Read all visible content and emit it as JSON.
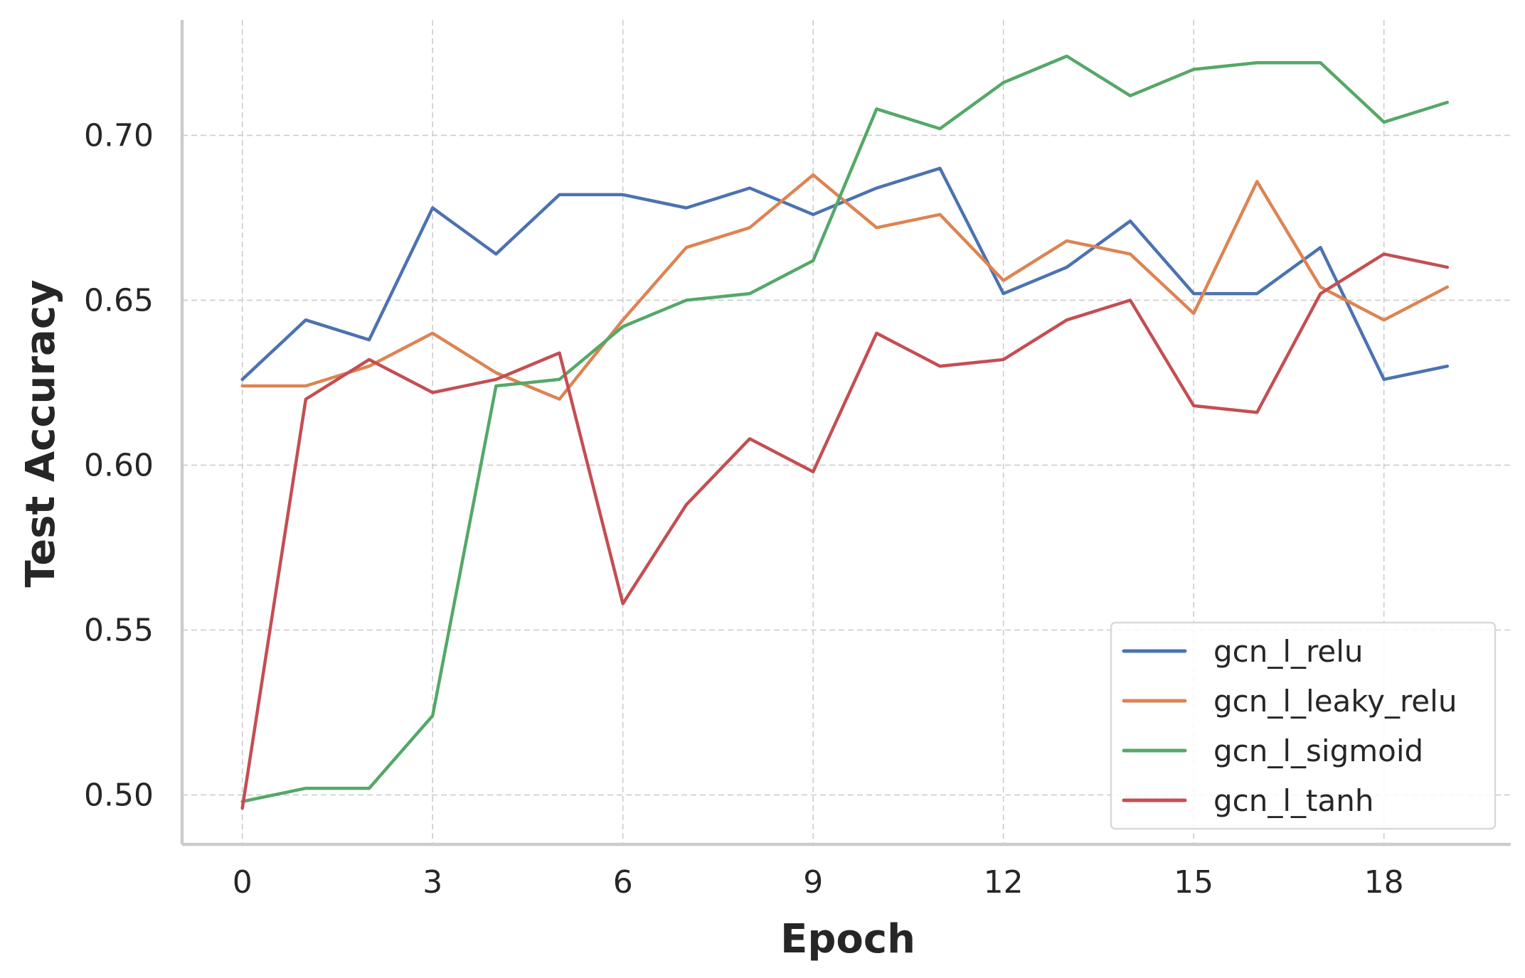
{
  "chart_data": {
    "type": "line",
    "title": "",
    "xlabel": "Epoch",
    "ylabel": "Test Accuracy",
    "xlim": [
      -0.95,
      20
    ],
    "ylim": [
      0.485,
      0.735
    ],
    "x_ticks": [
      0,
      3,
      6,
      9,
      12,
      15,
      18
    ],
    "y_ticks": [
      0.5,
      0.55,
      0.6,
      0.65,
      0.7
    ],
    "y_tick_labels": [
      "0.50",
      "0.55",
      "0.60",
      "0.65",
      "0.70"
    ],
    "grid": true,
    "legend_position": "lower-right",
    "x": [
      0,
      1,
      2,
      3,
      4,
      5,
      6,
      7,
      8,
      9,
      10,
      11,
      12,
      13,
      14,
      15,
      16,
      17,
      18,
      19
    ],
    "series": [
      {
        "name": "gcn_l_relu",
        "color": "#4c72b0",
        "values": [
          0.626,
          0.644,
          0.638,
          0.678,
          0.664,
          0.682,
          0.682,
          0.678,
          0.684,
          0.676,
          0.684,
          0.69,
          0.652,
          0.66,
          0.674,
          0.652,
          0.652,
          0.666,
          0.626,
          0.63
        ]
      },
      {
        "name": "gcn_l_leaky_relu",
        "color": "#dd8452",
        "values": [
          0.624,
          0.624,
          0.63,
          0.64,
          0.628,
          0.62,
          0.644,
          0.666,
          0.672,
          0.688,
          0.672,
          0.676,
          0.656,
          0.668,
          0.664,
          0.646,
          0.686,
          0.654,
          0.644,
          0.654
        ]
      },
      {
        "name": "gcn_l_sigmoid",
        "color": "#55a868",
        "values": [
          0.498,
          0.502,
          0.502,
          0.524,
          0.624,
          0.626,
          0.642,
          0.65,
          0.652,
          0.662,
          0.708,
          0.702,
          0.716,
          0.724,
          0.712,
          0.72,
          0.722,
          0.722,
          0.704,
          0.71
        ]
      },
      {
        "name": "gcn_l_tanh",
        "color": "#c44e52",
        "values": [
          0.496,
          0.62,
          0.632,
          0.622,
          0.626,
          0.634,
          0.558,
          0.588,
          0.608,
          0.598,
          0.64,
          0.63,
          0.632,
          0.644,
          0.65,
          0.618,
          0.616,
          0.652,
          0.664,
          0.66
        ]
      }
    ]
  }
}
